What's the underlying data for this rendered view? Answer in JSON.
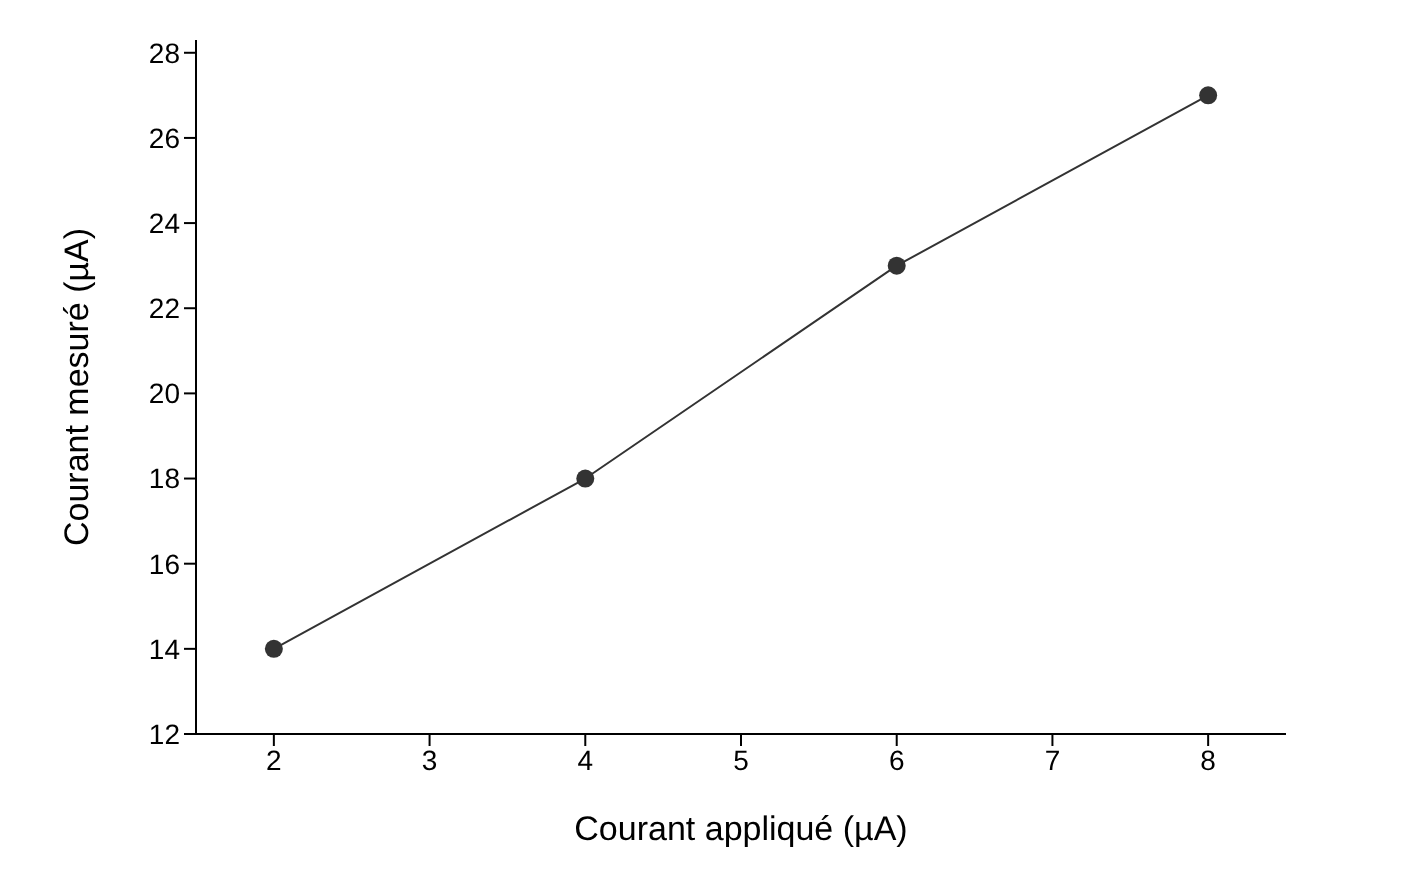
{
  "chart_data": {
    "type": "line",
    "xlabel": "Courant appliqué (µA)",
    "ylabel": "Courant mesuré (µA)",
    "x": [
      2,
      4,
      6,
      8
    ],
    "series": [
      {
        "color": "#333333",
        "values": [
          14,
          18,
          23,
          27
        ]
      }
    ],
    "xlim": [
      1.5,
      8.5
    ],
    "xticks": [
      2,
      3,
      4,
      5,
      6,
      7,
      8
    ],
    "ylim": [
      12,
      28.3
    ],
    "yticks": [
      12,
      14,
      16,
      18,
      20,
      22,
      24,
      26,
      28
    ],
    "marker": "circle",
    "line_style": "solid"
  }
}
